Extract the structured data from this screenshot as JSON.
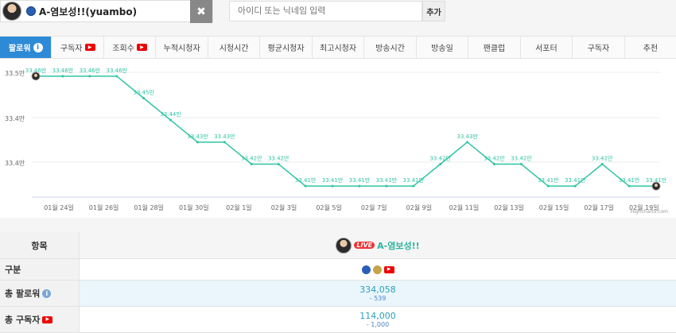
{
  "selected_streamer": "A-염보성!!(yuambo)",
  "close_label": "✖",
  "search": {
    "placeholder": "아이디 또는 닉네임 입력"
  },
  "add_label": "추가",
  "tabs": [
    {
      "label": "팔로워",
      "active": true,
      "icon": "info-icon"
    },
    {
      "label": "구독자",
      "active": false,
      "icon": "youtube-icon"
    },
    {
      "label": "조회수",
      "active": false,
      "icon": "youtube-icon"
    },
    {
      "label": "누적시청자",
      "active": false,
      "icon": ""
    },
    {
      "label": "시청시간",
      "active": false,
      "icon": ""
    },
    {
      "label": "평균시청자",
      "active": false,
      "icon": ""
    },
    {
      "label": "최고시청자",
      "active": false,
      "icon": ""
    },
    {
      "label": "방송시간",
      "active": false,
      "icon": ""
    },
    {
      "label": "방송일",
      "active": false,
      "icon": ""
    },
    {
      "label": "팬클럽",
      "active": false,
      "icon": ""
    },
    {
      "label": "서포터",
      "active": false,
      "icon": ""
    },
    {
      "label": "구독자",
      "active": false,
      "icon": ""
    },
    {
      "label": "추천",
      "active": false,
      "icon": ""
    }
  ],
  "chart_data": {
    "type": "line",
    "color": "#2ec4a4",
    "y_tick_labels": [
      "33.5만",
      "33.4만",
      "33.4만"
    ],
    "x_tick_labels": [
      "01월 24일",
      "01월 26일",
      "01월 28일",
      "01월 30일",
      "02월 1일",
      "02월 3일",
      "02월 5일",
      "02월 7일",
      "02월 9일",
      "02월 11일",
      "02월 13일",
      "02월 15일",
      "02월 17일",
      "02월 19일"
    ],
    "values": [
      334600,
      334600,
      334600,
      334600,
      334500,
      334400,
      334300,
      334300,
      334200,
      334200,
      334100,
      334100,
      334100,
      334100,
      334100,
      334200,
      334300,
      334200,
      334200,
      334100,
      334100,
      334200,
      334100,
      334100
    ],
    "point_labels": [
      "33.46만",
      "33.46만",
      "33.46만",
      "33.46만",
      "33.45만",
      "33.44만",
      "33.43만",
      "33.43만",
      "33.42만",
      "33.42만",
      "33.41만",
      "33.41만",
      "33.41만",
      "33.41만",
      "33.41만",
      "33.42만",
      "33.43만",
      "33.42만",
      "33.42만",
      "33.41만",
      "33.41만",
      "33.42만",
      "33.41만",
      "33.41만"
    ],
    "credit": "Highcharts.com"
  },
  "table": {
    "header_label": "항목",
    "live_label": "LIVE",
    "streamer_name": "A-염보성!!",
    "rows": [
      {
        "label": "구분"
      },
      {
        "label": "총 팔로워",
        "value": "334,058",
        "delta": "- 539"
      },
      {
        "label": "총 구독자",
        "value": "114,000",
        "delta": "- 1,000"
      }
    ]
  }
}
